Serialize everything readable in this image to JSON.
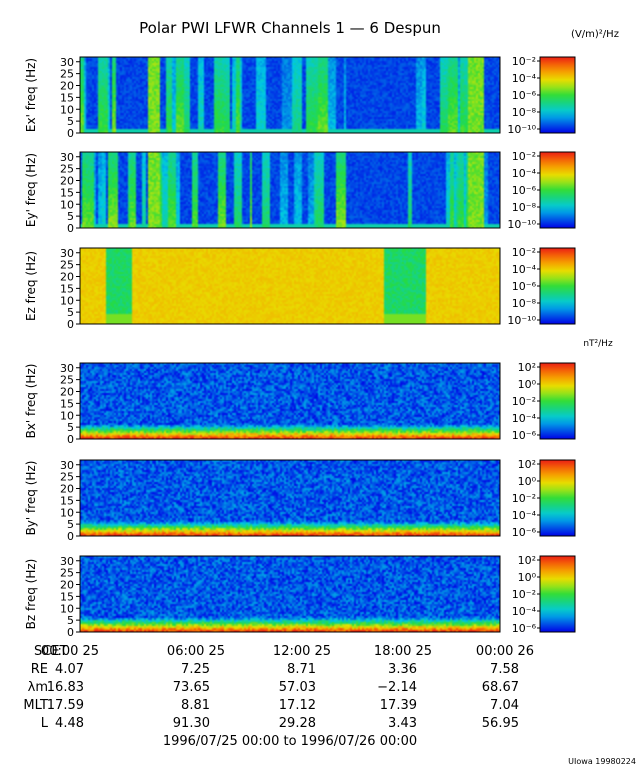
{
  "title": "Polar PWI LFWR Channels 1 — 6 Despun",
  "e_units": "(V/m)²/Hz",
  "b_units": "nT²/Hz",
  "credit": "UIowa 19980224",
  "time_range": "1996/07/25 00:00 to 1996/07/26 00:00",
  "chart_data": [
    {
      "type": "heatmap",
      "ylabel": "Ex' freq (Hz)",
      "yticks": [
        0,
        5,
        10,
        15,
        20,
        25,
        30
      ],
      "ylim": [
        0,
        32
      ],
      "colorbar": {
        "ticks": [
          "10⁻²",
          "10⁻⁴",
          "10⁻⁶",
          "10⁻⁸",
          "10⁻¹⁰"
        ]
      },
      "kind": "e-bursty"
    },
    {
      "type": "heatmap",
      "ylabel": "Ey' freq (Hz)",
      "yticks": [
        0,
        5,
        10,
        15,
        20,
        25,
        30
      ],
      "ylim": [
        0,
        32
      ],
      "colorbar": {
        "ticks": [
          "10⁻²",
          "10⁻⁴",
          "10⁻⁶",
          "10⁻⁸",
          "10⁻¹⁰"
        ]
      },
      "kind": "e-bursty"
    },
    {
      "type": "heatmap",
      "ylabel": "Ez freq (Hz)",
      "yticks": [
        0,
        5,
        10,
        15,
        20,
        25,
        30
      ],
      "ylim": [
        0,
        32
      ],
      "colorbar": {
        "ticks": [
          "10⁻²",
          "10⁻⁴",
          "10⁻⁶",
          "10⁻⁸",
          "10⁻¹⁰"
        ]
      },
      "kind": "ez"
    },
    {
      "type": "heatmap",
      "ylabel": "Bx' freq (Hz)",
      "yticks": [
        0,
        5,
        10,
        15,
        20,
        25,
        30
      ],
      "ylim": [
        0,
        32
      ],
      "colorbar": {
        "ticks": [
          "10²",
          "10⁰",
          "10⁻²",
          "10⁻⁴",
          "10⁻⁶"
        ]
      },
      "kind": "b"
    },
    {
      "type": "heatmap",
      "ylabel": "By' freq (Hz)",
      "yticks": [
        0,
        5,
        10,
        15,
        20,
        25,
        30
      ],
      "ylim": [
        0,
        32
      ],
      "colorbar": {
        "ticks": [
          "10²",
          "10⁰",
          "10⁻²",
          "10⁻⁴",
          "10⁻⁶"
        ]
      },
      "kind": "b"
    },
    {
      "type": "heatmap",
      "ylabel": "Bz freq (Hz)",
      "yticks": [
        0,
        5,
        10,
        15,
        20,
        25,
        30
      ],
      "ylim": [
        0,
        32
      ],
      "colorbar": {
        "ticks": [
          "10²",
          "10⁰",
          "10⁻²",
          "10⁻⁴",
          "10⁻⁶"
        ]
      },
      "kind": "b"
    }
  ],
  "ephemeris": {
    "scet_label": "SCET",
    "scet": [
      "00:00 25",
      "06:00 25",
      "12:00 25",
      "18:00 25",
      "00:00 26"
    ],
    "rows": [
      {
        "label": "RE",
        "values": [
          "4.07",
          "7.25",
          "8.71",
          "3.36",
          "7.58"
        ]
      },
      {
        "label": "λm",
        "values": [
          "16.83",
          "73.65",
          "57.03",
          "−2.14",
          "68.67"
        ]
      },
      {
        "label": "MLT",
        "values": [
          "17.59",
          "8.81",
          "17.12",
          "17.39",
          "7.04"
        ]
      },
      {
        "label": "L",
        "values": [
          "4.48",
          "91.30",
          "29.28",
          "3.43",
          "56.95"
        ]
      }
    ]
  }
}
